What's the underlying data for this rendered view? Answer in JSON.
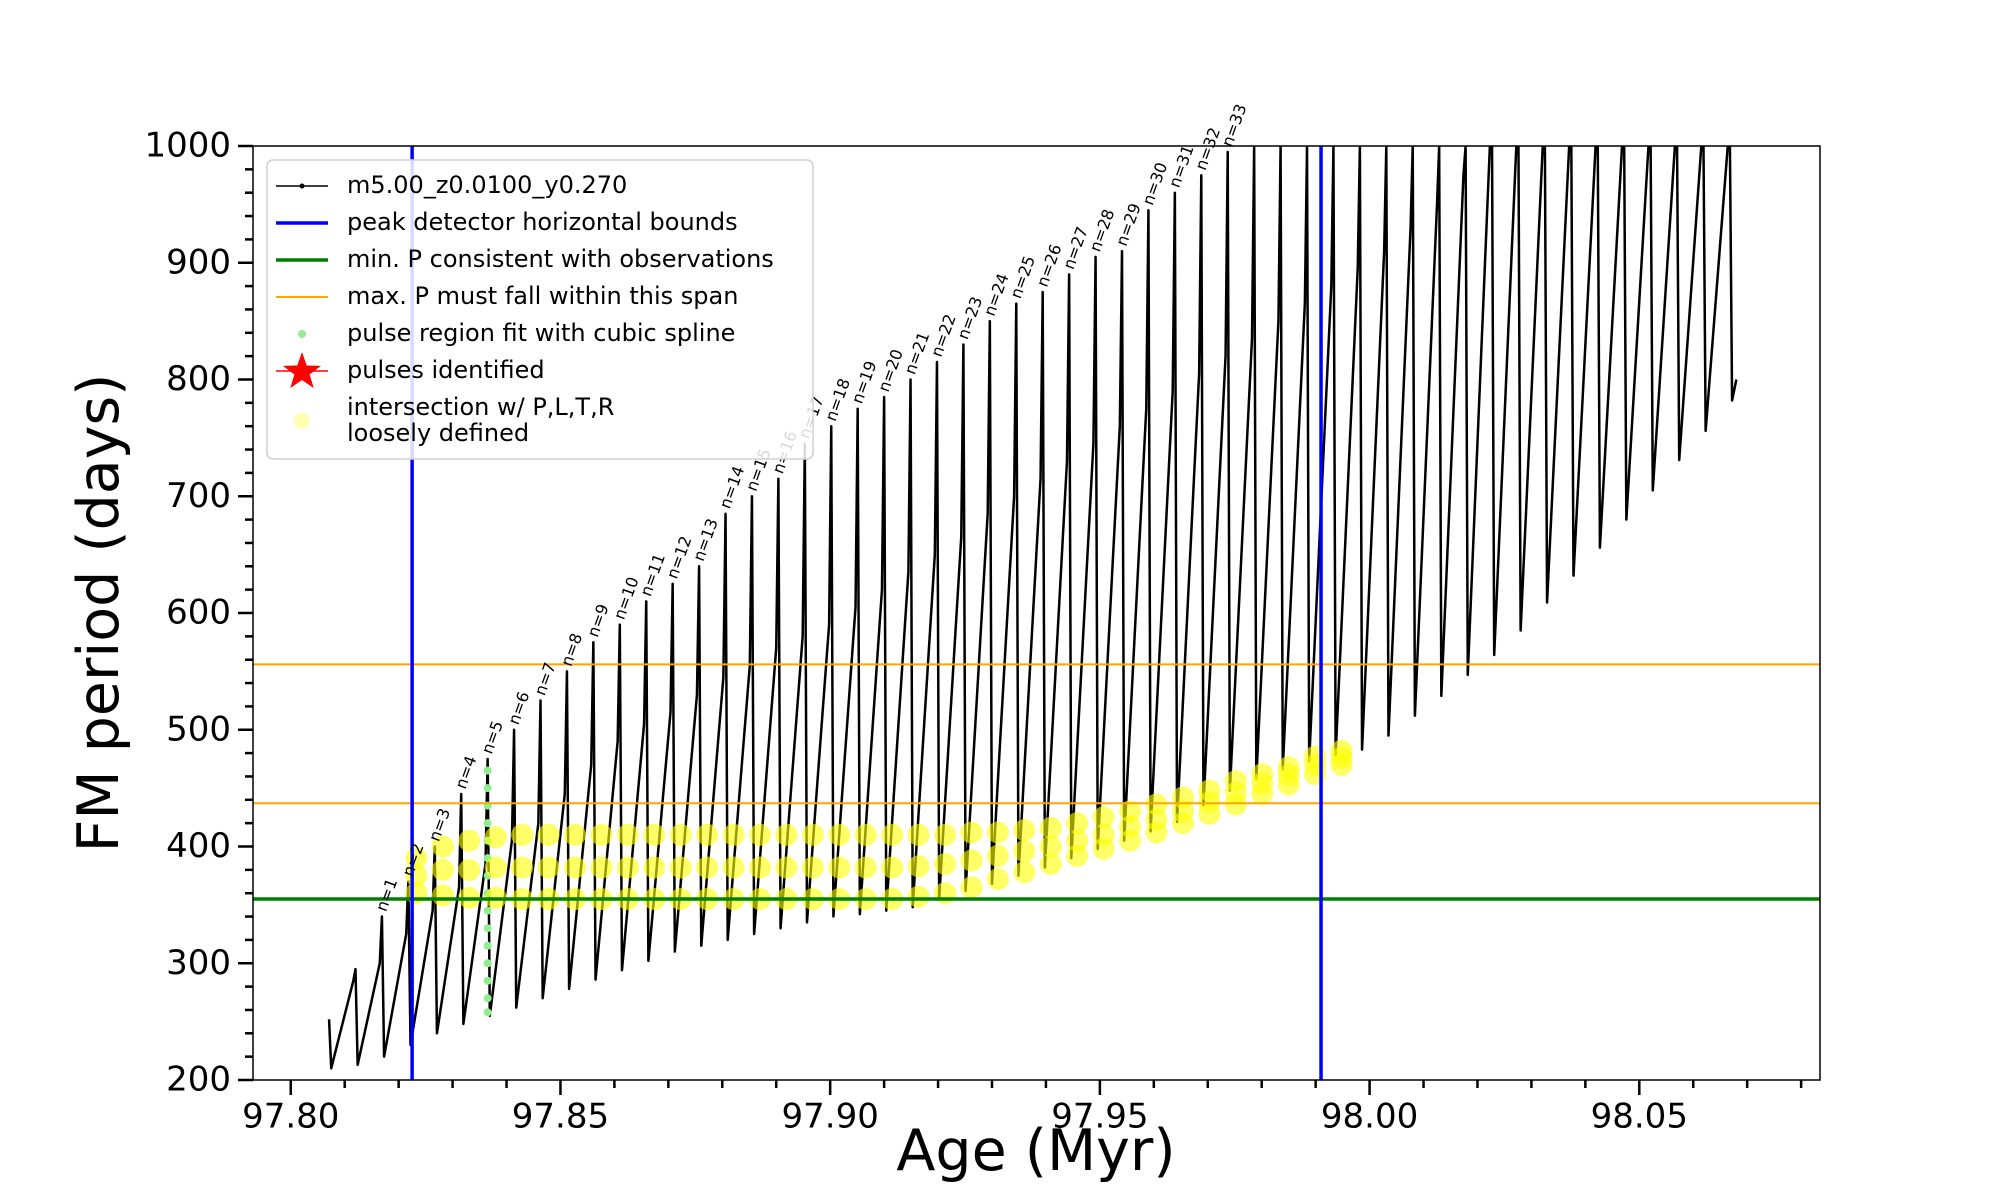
{
  "chart_data": {
    "type": "line",
    "x_label": "Age (Myr)",
    "y_label": "FM period (days)",
    "xlim": [
      97.793,
      98.0835
    ],
    "ylim": [
      200,
      1000
    ],
    "xticks": [
      {
        "value": 97.8,
        "label": "97.80"
      },
      {
        "value": 97.85,
        "label": "97.85"
      },
      {
        "value": 97.9,
        "label": "97.90"
      },
      {
        "value": 97.95,
        "label": "97.95"
      },
      {
        "value": 98.0,
        "label": "98.00"
      },
      {
        "value": 98.05,
        "label": "98.05"
      }
    ],
    "xminorticks": [
      97.81,
      97.82,
      97.83,
      97.84,
      97.86,
      97.87,
      97.88,
      97.89,
      97.91,
      97.92,
      97.93,
      97.94,
      97.96,
      97.97,
      97.98,
      97.99,
      98.01,
      98.02,
      98.03,
      98.04,
      98.06,
      98.07,
      98.08
    ],
    "yticks": [
      200,
      300,
      400,
      500,
      600,
      700,
      800,
      900,
      1000
    ],
    "yminorticks": [
      220,
      240,
      260,
      280,
      320,
      340,
      360,
      380,
      420,
      440,
      460,
      480,
      520,
      540,
      560,
      580,
      620,
      640,
      660,
      680,
      720,
      740,
      760,
      780,
      820,
      840,
      860,
      880,
      920,
      940,
      960,
      980
    ],
    "grid": false,
    "legend": "upper left",
    "series": [
      {
        "name": "m5.00_z0.0100_y0.270",
        "type": "line",
        "color": "#000000",
        "linewidth": 2.5,
        "x": [
          97.8071,
          97.8075,
          97.8116,
          97.812,
          97.8124,
          97.8165,
          97.8169,
          97.8173,
          97.8214,
          97.8218,
          97.8222,
          97.8263,
          97.8267,
          97.8271,
          97.8312,
          97.8316,
          97.832,
          97.8361,
          97.8365,
          97.8369,
          97.841,
          97.8414,
          97.8418,
          97.8459,
          97.8463,
          97.8467,
          97.8508,
          97.8512,
          97.8516,
          97.8557,
          97.8561,
          97.8565,
          97.8606,
          97.861,
          97.8614,
          97.8655,
          97.8659,
          97.8663,
          97.8704,
          97.8708,
          97.8712,
          97.8753,
          97.8757,
          97.8761,
          97.8802,
          97.8806,
          97.881,
          97.8851,
          97.8855,
          97.8859,
          97.89,
          97.8904,
          97.8908,
          97.8949,
          97.8953,
          97.8957,
          97.8998,
          97.9002,
          97.9006,
          97.9047,
          97.9051,
          97.9055,
          97.9096,
          97.91,
          97.9104,
          97.9145,
          97.9149,
          97.9153,
          97.9194,
          97.9198,
          97.9202,
          97.9243,
          97.9247,
          97.9251,
          97.9292,
          97.9296,
          97.93,
          97.9341,
          97.9345,
          97.9349,
          97.939,
          97.9394,
          97.9398,
          97.9439,
          97.9443,
          97.9447,
          97.9488,
          97.9492,
          97.9496,
          97.9537,
          97.9541,
          97.9545,
          97.9586,
          97.959,
          97.9594,
          97.9635,
          97.9639,
          97.9643,
          97.9684,
          97.9688,
          97.9692,
          97.9733,
          97.9737,
          97.9741,
          97.9782,
          97.9786,
          97.979,
          97.9831,
          97.9835,
          97.9839,
          97.988,
          97.9884,
          97.9888,
          97.9929,
          97.9933,
          97.9937,
          97.9978,
          97.9982,
          97.9986,
          98.0027,
          98.0031,
          98.0035,
          98.0076,
          98.008,
          98.0084,
          98.0125,
          98.0129,
          98.0133,
          98.0174,
          98.0178,
          98.0182,
          98.0223,
          98.0227,
          98.0231,
          98.0272,
          98.0276,
          98.028,
          98.0321,
          98.0325,
          98.0329,
          98.037,
          98.0374,
          98.0378,
          98.0419,
          98.0423,
          98.0427,
          98.0468,
          98.0472,
          98.0476,
          98.0517,
          98.0521,
          98.0525,
          98.0566,
          98.057,
          98.0574,
          98.0615,
          98.0619,
          98.0623,
          98.0664,
          98.0668,
          98.0672,
          98.068
        ],
        "y": [
          252,
          210,
          285,
          295,
          213,
          300,
          340,
          220,
          325,
          370,
          230,
          345,
          400,
          240,
          365,
          445,
          248,
          385,
          475,
          255,
          405,
          500,
          262,
          420,
          525,
          270,
          445,
          550,
          278,
          470,
          575,
          286,
          490,
          590,
          294,
          505,
          610,
          302,
          515,
          625,
          310,
          530,
          640,
          315,
          545,
          685,
          320,
          555,
          700,
          325,
          570,
          715,
          330,
          580,
          745,
          335,
          590,
          760,
          340,
          605,
          775,
          342,
          620,
          785,
          345,
          635,
          800,
          348,
          650,
          815,
          355,
          665,
          830,
          362,
          685,
          850,
          368,
          700,
          865,
          375,
          715,
          875,
          382,
          730,
          890,
          390,
          745,
          905,
          398,
          760,
          910,
          405,
          775,
          945,
          413,
          790,
          960,
          421,
          805,
          975,
          435,
          820,
          995,
          448,
          835,
          1000,
          458,
          850,
          1000,
          466,
          865,
          1000,
          473,
          880,
          1000,
          478,
          895,
          1000,
          483,
          910,
          1000,
          495,
          930,
          1000,
          512,
          950,
          1000,
          529,
          975,
          1000,
          547,
          1000,
          1000,
          564,
          1000,
          1000,
          585,
          1000,
          1000,
          609,
          1000,
          1000,
          632,
          1000,
          1000,
          656,
          1000,
          1000,
          680,
          1000,
          1000,
          705,
          1000,
          1000,
          731,
          1000,
          1000,
          756,
          1000,
          1000,
          782,
          800
        ]
      },
      {
        "name": "peak detector horizontal bounds",
        "type": "vline",
        "color": "#0000ff",
        "linewidth": 3.5,
        "x": [
          97.8225,
          97.991
        ]
      },
      {
        "name": "min. P consistent with observations",
        "type": "hline",
        "color": "#008000",
        "linewidth": 3.5,
        "y": [
          355
        ]
      },
      {
        "name": "max. P must fall within this span",
        "type": "hline",
        "color": "#ffa500",
        "linewidth": 2,
        "y": [
          437,
          556
        ]
      },
      {
        "name": "pulse region fit with cubic spline",
        "type": "scatter",
        "color": "#90ee90",
        "alpha": 1,
        "x": [
          97.8365,
          97.8365,
          97.8365,
          97.8365,
          97.8365,
          97.8365,
          97.8365,
          97.8365,
          97.8365,
          97.8365,
          97.8365,
          97.8365,
          97.8365,
          97.8365,
          97.8365
        ],
        "y": [
          258,
          270,
          285,
          300,
          315,
          330,
          345,
          360,
          375,
          390,
          405,
          420,
          435,
          450,
          465
        ]
      },
      {
        "name": "pulses identified",
        "type": "star",
        "color": "#ff0000",
        "x": [],
        "y": []
      },
      {
        "name": "intersection w/ P,L,T,R\nloosely defined",
        "type": "scatter",
        "color": "#ffff00",
        "alpha": 0.6,
        "x": [
          97.8233,
          97.8233,
          97.8233,
          97.8282,
          97.8282,
          97.8282,
          97.8331,
          97.8331,
          97.8331,
          97.838,
          97.838,
          97.838,
          97.8429,
          97.8429,
          97.8429,
          97.8478,
          97.8478,
          97.8478,
          97.8527,
          97.8527,
          97.8527,
          97.8576,
          97.8576,
          97.8576,
          97.8625,
          97.8625,
          97.8625,
          97.8674,
          97.8674,
          97.8674,
          97.8723,
          97.8723,
          97.8723,
          97.8772,
          97.8772,
          97.8772,
          97.8821,
          97.8821,
          97.8821,
          97.887,
          97.887,
          97.887,
          97.8919,
          97.8919,
          97.8919,
          97.8968,
          97.8968,
          97.8968,
          97.9017,
          97.9017,
          97.9017,
          97.9066,
          97.9066,
          97.9066,
          97.9115,
          97.9115,
          97.9115,
          97.9164,
          97.9164,
          97.9164,
          97.9213,
          97.9213,
          97.9213,
          97.9262,
          97.9262,
          97.9262,
          97.9311,
          97.9311,
          97.9311,
          97.936,
          97.936,
          97.936,
          97.9409,
          97.9409,
          97.9409,
          97.9458,
          97.9458,
          97.9458,
          97.9507,
          97.9507,
          97.9507,
          97.9556,
          97.9556,
          97.9556,
          97.9605,
          97.9605,
          97.9605,
          97.9654,
          97.9654,
          97.9654,
          97.9703,
          97.9703,
          97.9703,
          97.9752,
          97.9752,
          97.9752,
          97.9801,
          97.9801,
          97.9801,
          97.985,
          97.985,
          97.985,
          97.9899,
          97.9899,
          97.9899,
          97.9948,
          97.9948,
          97.9948
        ],
        "y": [
          360,
          375,
          390,
          358,
          380,
          400,
          356,
          380,
          405,
          356,
          382,
          408,
          355,
          382,
          410,
          355,
          382,
          410,
          355,
          382,
          410,
          355,
          382,
          410,
          355,
          382,
          410,
          355,
          382,
          410,
          355,
          382,
          410,
          355,
          382,
          410,
          355,
          382,
          410,
          355,
          382,
          410,
          355,
          382,
          410,
          355,
          382,
          410,
          355,
          382,
          410,
          355,
          382,
          410,
          355,
          382,
          410,
          357,
          383,
          410,
          360,
          385,
          410,
          365,
          388,
          412,
          372,
          392,
          412,
          378,
          396,
          414,
          385,
          400,
          416,
          392,
          405,
          420,
          398,
          410,
          425,
          405,
          417,
          430,
          412,
          423,
          436,
          420,
          430,
          442,
          428,
          438,
          448,
          436,
          446,
          456,
          445,
          454,
          462,
          453,
          461,
          468,
          462,
          470,
          477,
          470,
          476,
          482
        ]
      }
    ],
    "annotations": [
      {
        "text": "n=1",
        "x": 97.8169,
        "y": 340
      },
      {
        "text": "n=2",
        "x": 97.8218,
        "y": 370
      },
      {
        "text": "n=3",
        "x": 97.8267,
        "y": 400
      },
      {
        "text": "n=4",
        "x": 97.8316,
        "y": 445
      },
      {
        "text": "n=5",
        "x": 97.8365,
        "y": 475
      },
      {
        "text": "n=6",
        "x": 97.8414,
        "y": 500
      },
      {
        "text": "n=7",
        "x": 97.8463,
        "y": 525
      },
      {
        "text": "n=8",
        "x": 97.8512,
        "y": 550
      },
      {
        "text": "n=9",
        "x": 97.8561,
        "y": 575
      },
      {
        "text": "n=10",
        "x": 97.861,
        "y": 590
      },
      {
        "text": "n=11",
        "x": 97.8659,
        "y": 610
      },
      {
        "text": "n=12",
        "x": 97.8708,
        "y": 625
      },
      {
        "text": "n=13",
        "x": 97.8757,
        "y": 640
      },
      {
        "text": "n=14",
        "x": 97.8806,
        "y": 685
      },
      {
        "text": "n=15",
        "x": 97.8855,
        "y": 700
      },
      {
        "text": "n=16",
        "x": 97.8904,
        "y": 715
      },
      {
        "text": "n=17",
        "x": 97.8953,
        "y": 745
      },
      {
        "text": "n=18",
        "x": 97.9002,
        "y": 760
      },
      {
        "text": "n=19",
        "x": 97.9051,
        "y": 775
      },
      {
        "text": "n=20",
        "x": 97.91,
        "y": 785
      },
      {
        "text": "n=21",
        "x": 97.9149,
        "y": 800
      },
      {
        "text": "n=22",
        "x": 97.9198,
        "y": 815
      },
      {
        "text": "n=23",
        "x": 97.9247,
        "y": 830
      },
      {
        "text": "n=24",
        "x": 97.9296,
        "y": 850
      },
      {
        "text": "n=25",
        "x": 97.9345,
        "y": 865
      },
      {
        "text": "n=26",
        "x": 97.9394,
        "y": 875
      },
      {
        "text": "n=27",
        "x": 97.9443,
        "y": 890
      },
      {
        "text": "n=28",
        "x": 97.9492,
        "y": 905
      },
      {
        "text": "n=29",
        "x": 97.9541,
        "y": 910
      },
      {
        "text": "n=30",
        "x": 97.959,
        "y": 945
      },
      {
        "text": "n=31",
        "x": 97.9639,
        "y": 960
      },
      {
        "text": "n=32",
        "x": 97.9688,
        "y": 975
      },
      {
        "text": "n=33",
        "x": 97.9737,
        "y": 995
      }
    ]
  }
}
